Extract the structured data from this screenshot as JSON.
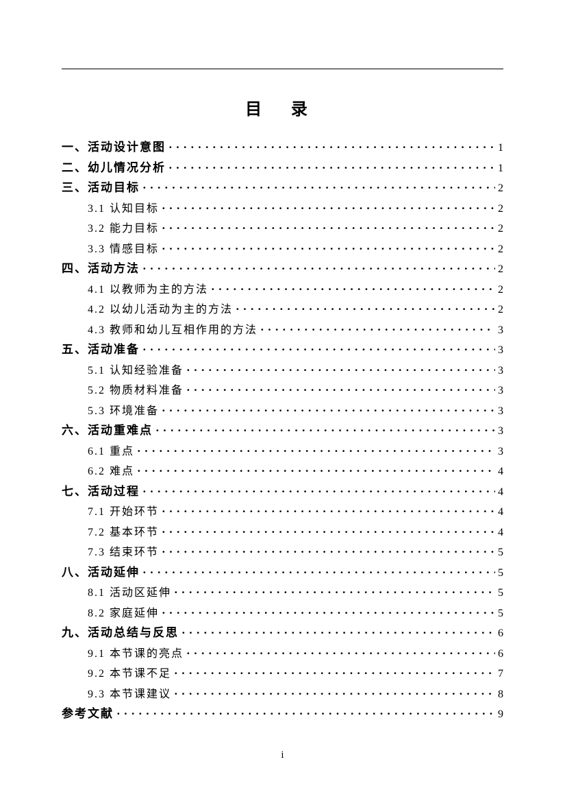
{
  "title": "目 录",
  "page_number": "i",
  "entries": [
    {
      "level": 1,
      "label": "一、活动设计意图",
      "page": "1"
    },
    {
      "level": 1,
      "label": "二、幼儿情况分析",
      "page": "1"
    },
    {
      "level": 1,
      "label": "三、活动目标",
      "page": "2"
    },
    {
      "level": 2,
      "label": "3.1 认知目标",
      "page": "2"
    },
    {
      "level": 2,
      "label": "3.2 能力目标",
      "page": "2"
    },
    {
      "level": 2,
      "label": "3.3 情感目标",
      "page": "2"
    },
    {
      "level": 1,
      "label": "四、活动方法",
      "page": "2"
    },
    {
      "level": 2,
      "label": "4.1 以教师为主的方法",
      "page": "2"
    },
    {
      "level": 2,
      "label": "4.2 以幼儿活动为主的方法",
      "page": "2"
    },
    {
      "level": 2,
      "label": "4.3 教师和幼儿互相作用的方法",
      "page": "3"
    },
    {
      "level": 1,
      "label": "五、活动准备",
      "page": "3"
    },
    {
      "level": 2,
      "label": "5.1 认知经验准备",
      "page": "3"
    },
    {
      "level": 2,
      "label": "5.2 物质材料准备",
      "page": "3"
    },
    {
      "level": 2,
      "label": "5.3 环境准备",
      "page": "3"
    },
    {
      "level": 1,
      "label": "六、活动重难点",
      "page": "3"
    },
    {
      "level": 2,
      "label": "6.1 重点",
      "page": "3"
    },
    {
      "level": 2,
      "label": "6.2 难点",
      "page": "4"
    },
    {
      "level": 1,
      "label": "七、活动过程",
      "page": "4"
    },
    {
      "level": 2,
      "label": "7.1 开始环节",
      "page": "4"
    },
    {
      "level": 2,
      "label": "7.2 基本环节",
      "page": "4"
    },
    {
      "level": 2,
      "label": "7.3 结束环节",
      "page": "5"
    },
    {
      "level": 1,
      "label": "八、活动延伸",
      "page": "5"
    },
    {
      "level": 2,
      "label": "8.1 活动区延伸",
      "page": "5"
    },
    {
      "level": 2,
      "label": "8.2 家庭延伸",
      "page": "5"
    },
    {
      "level": 1,
      "label": "九、活动总结与反思",
      "page": "6"
    },
    {
      "level": 2,
      "label": "9.1 本节课的亮点",
      "page": "6"
    },
    {
      "level": 2,
      "label": "9.2 本节课不足",
      "page": "7"
    },
    {
      "level": 2,
      "label": "9.3 本节课建议",
      "page": "8"
    },
    {
      "level": 1,
      "label": "参考文献",
      "page": "9"
    }
  ]
}
